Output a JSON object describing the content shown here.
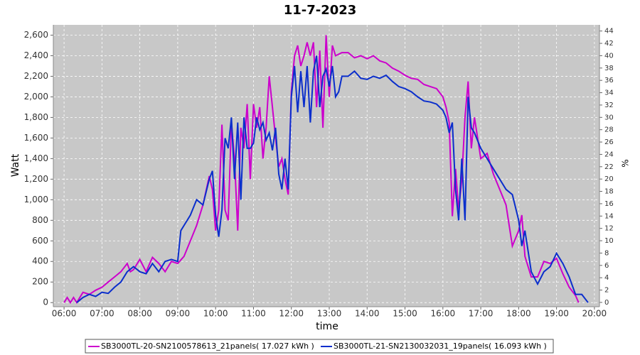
{
  "chart_data": {
    "type": "line",
    "title": "11-7-2023",
    "x_label": "time",
    "y_label": "Watt",
    "y2_label": "%",
    "xlim": [
      "05:43",
      "20:08"
    ],
    "xticks": [
      "06:00",
      "07:00",
      "08:00",
      "09:00",
      "10:00",
      "11:00",
      "12:00",
      "13:00",
      "14:00",
      "15:00",
      "16:00",
      "17:00",
      "18:00",
      "19:00",
      "20:00"
    ],
    "ylim": [
      -40,
      2700
    ],
    "yticks": [
      0,
      200,
      400,
      600,
      800,
      {
        "value": 1000,
        "label": "1,000"
      },
      {
        "value": 1200,
        "label": "1,200"
      },
      {
        "value": 1400,
        "label": "1,400"
      },
      {
        "value": 1600,
        "label": "1,600"
      },
      {
        "value": 1800,
        "label": "1,800"
      },
      {
        "value": 2000,
        "label": "2,000"
      },
      {
        "value": 2200,
        "label": "2,200"
      },
      {
        "value": 2400,
        "label": "2,400"
      },
      {
        "value": 2600,
        "label": "2,600"
      }
    ],
    "y2lim": [
      -0.7,
      45
    ],
    "y2ticks": [
      0,
      2,
      4,
      6,
      8,
      10,
      12,
      14,
      16,
      18,
      20,
      22,
      24,
      26,
      28,
      30,
      32,
      34,
      36,
      38,
      40,
      42,
      44
    ],
    "grid": true,
    "series": [
      {
        "name": "SB3000TL-20-SN2100578613_21panels( 17.027 kWh )",
        "color": "#cc00cc",
        "x": [
          "06:00",
          "06:05",
          "06:10",
          "06:15",
          "06:20",
          "06:30",
          "06:40",
          "06:50",
          "07:00",
          "07:10",
          "07:20",
          "07:30",
          "07:40",
          "07:45",
          "07:50",
          "08:00",
          "08:10",
          "08:20",
          "08:30",
          "08:40",
          "08:50",
          "09:00",
          "09:10",
          "09:20",
          "09:30",
          "09:40",
          "09:50",
          "09:55",
          "10:00",
          "10:05",
          "10:10",
          "10:15",
          "10:20",
          "10:25",
          "10:30",
          "10:35",
          "10:40",
          "10:45",
          "10:50",
          "10:55",
          "11:00",
          "11:05",
          "11:10",
          "11:15",
          "11:20",
          "11:25",
          "11:30",
          "11:35",
          "11:40",
          "11:45",
          "11:50",
          "11:55",
          "12:00",
          "12:05",
          "12:10",
          "12:15",
          "12:20",
          "12:25",
          "12:30",
          "12:35",
          "12:40",
          "12:45",
          "12:50",
          "12:55",
          "13:00",
          "13:05",
          "13:10",
          "13:20",
          "13:30",
          "13:40",
          "13:50",
          "14:00",
          "14:10",
          "14:20",
          "14:30",
          "14:40",
          "14:50",
          "15:00",
          "15:10",
          "15:20",
          "15:30",
          "15:40",
          "15:50",
          "16:00",
          "16:05",
          "16:10",
          "16:15",
          "16:20",
          "16:25",
          "16:30",
          "16:35",
          "16:40",
          "16:45",
          "16:50",
          "17:00",
          "17:10",
          "17:20",
          "17:30",
          "17:40",
          "17:50",
          "18:00",
          "18:05",
          "18:10",
          "18:20",
          "18:30",
          "18:40",
          "18:50",
          "19:00",
          "19:10",
          "19:20",
          "19:30",
          "19:35"
        ],
        "values": [
          0,
          50,
          0,
          50,
          0,
          100,
          80,
          120,
          150,
          200,
          250,
          300,
          380,
          300,
          320,
          420,
          300,
          440,
          380,
          300,
          400,
          380,
          450,
          600,
          750,
          950,
          1230,
          1100,
          700,
          900,
          1730,
          900,
          800,
          1750,
          1400,
          700,
          1700,
          1500,
          1930,
          1200,
          1930,
          1700,
          1900,
          1400,
          1700,
          2200,
          1900,
          1600,
          1320,
          1400,
          1200,
          1050,
          2050,
          2400,
          2500,
          2300,
          2400,
          2530,
          2400,
          2530,
          1900,
          2450,
          1700,
          2600,
          2000,
          2500,
          2400,
          2430,
          2430,
          2380,
          2400,
          2370,
          2400,
          2350,
          2330,
          2280,
          2250,
          2210,
          2180,
          2170,
          2120,
          2100,
          2080,
          2000,
          1900,
          1750,
          840,
          1300,
          900,
          1200,
          1800,
          2150,
          1500,
          1800,
          1400,
          1450,
          1250,
          1100,
          950,
          550,
          700,
          850,
          450,
          250,
          250,
          400,
          380,
          430,
          280,
          150,
          70,
          0
        ]
      },
      {
        "name": "SB3000TL-21-SN2130032031_19panels( 16.093 kWh )",
        "color": "#0a2ecc",
        "x": [
          "06:20",
          "06:30",
          "06:40",
          "06:50",
          "07:00",
          "07:10",
          "07:20",
          "07:30",
          "07:40",
          "07:50",
          "08:00",
          "08:10",
          "08:20",
          "08:30",
          "08:40",
          "08:50",
          "09:00",
          "09:05",
          "09:10",
          "09:20",
          "09:30",
          "09:40",
          "09:50",
          "09:55",
          "10:00",
          "10:05",
          "10:10",
          "10:15",
          "10:20",
          "10:25",
          "10:30",
          "10:35",
          "10:40",
          "10:45",
          "10:50",
          "10:55",
          "11:00",
          "11:05",
          "11:10",
          "11:15",
          "11:20",
          "11:25",
          "11:30",
          "11:35",
          "11:40",
          "11:45",
          "11:50",
          "11:55",
          "12:00",
          "12:05",
          "12:10",
          "12:15",
          "12:20",
          "12:25",
          "12:30",
          "12:35",
          "12:40",
          "12:45",
          "12:50",
          "12:55",
          "13:00",
          "13:05",
          "13:10",
          "13:15",
          "13:20",
          "13:30",
          "13:40",
          "13:50",
          "14:00",
          "14:10",
          "14:20",
          "14:30",
          "14:40",
          "14:50",
          "15:00",
          "15:10",
          "15:20",
          "15:30",
          "15:40",
          "15:50",
          "16:00",
          "16:05",
          "16:10",
          "16:15",
          "16:20",
          "16:25",
          "16:30",
          "16:35",
          "16:40",
          "16:45",
          "16:50",
          "17:00",
          "17:10",
          "17:20",
          "17:30",
          "17:40",
          "17:50",
          "18:00",
          "18:05",
          "18:10",
          "18:20",
          "18:30",
          "18:40",
          "18:50",
          "19:00",
          "19:10",
          "19:20",
          "19:30",
          "19:40",
          "19:50"
        ],
        "values": [
          0,
          50,
          80,
          60,
          100,
          90,
          150,
          200,
          300,
          350,
          300,
          280,
          380,
          300,
          400,
          420,
          400,
          700,
          750,
          850,
          1000,
          950,
          1200,
          1280,
          850,
          640,
          900,
          1600,
          1500,
          1800,
          1200,
          1750,
          1000,
          1800,
          1500,
          1500,
          1550,
          1800,
          1680,
          1750,
          1580,
          1650,
          1480,
          1700,
          1250,
          1100,
          1400,
          1100,
          2000,
          2300,
          1850,
          2250,
          1900,
          2300,
          1750,
          2250,
          2400,
          1900,
          2200,
          2270,
          2100,
          2300,
          2000,
          2050,
          2200,
          2200,
          2250,
          2180,
          2170,
          2200,
          2180,
          2210,
          2150,
          2100,
          2080,
          2050,
          2000,
          1960,
          1950,
          1930,
          1870,
          1800,
          1650,
          1750,
          1100,
          800,
          1400,
          800,
          2000,
          1700,
          1650,
          1500,
          1400,
          1300,
          1200,
          1100,
          1050,
          800,
          550,
          700,
          300,
          180,
          300,
          350,
          480,
          380,
          250,
          80,
          80,
          0
        ]
      }
    ]
  }
}
